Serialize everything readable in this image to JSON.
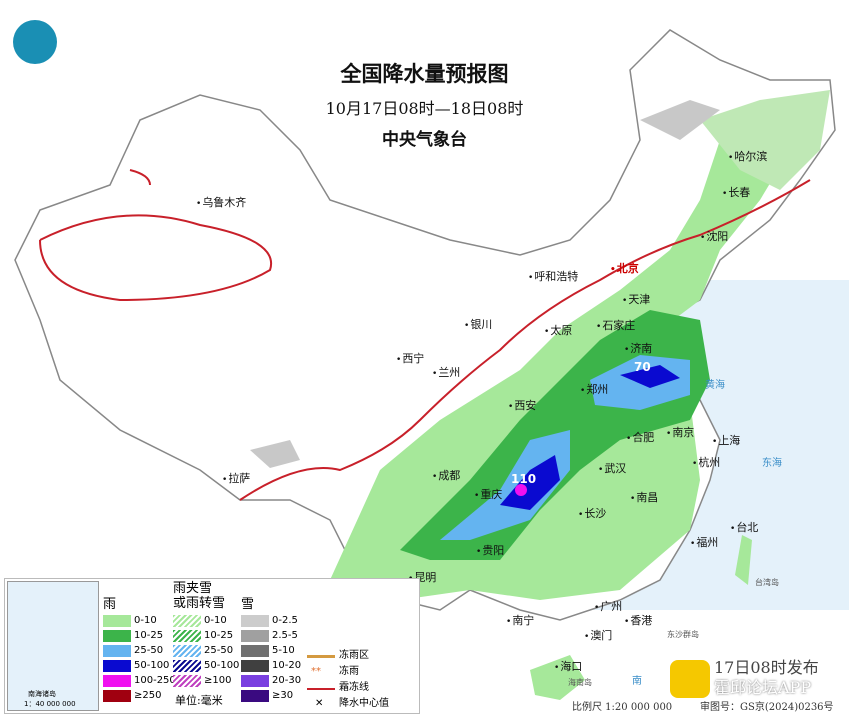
{
  "header": {
    "title": "全国降水量预报图",
    "period": "10月17日08时—18日08时",
    "issuer": "中央气象台"
  },
  "cities": {
    "harbin": "哈尔滨",
    "changchun": "长春",
    "shenyang": "沈阳",
    "urumqi": "乌鲁木齐",
    "hohhot": "呼和浩特",
    "beijing": "北京",
    "tianjin": "天津",
    "shijiazhuang": "石家庄",
    "taiyuan": "太原",
    "yinchuan": "银川",
    "xining": "西宁",
    "lanzhou": "兰州",
    "jinan": "济南",
    "zhengzhou": "郑州",
    "xian": "西安",
    "hefei": "合肥",
    "nanjing": "南京",
    "shanghai": "上海",
    "wuhan": "武汉",
    "hangzhou": "杭州",
    "chengdu": "成都",
    "chongqing": "重庆",
    "lhasa": "拉萨",
    "changsha": "长沙",
    "nanchang": "南昌",
    "guiyang": "贵阳",
    "fuzhou": "福州",
    "taipei": "台北",
    "kunming": "昆明",
    "nanning": "南宁",
    "guangzhou": "广州",
    "hongkong": "香港",
    "macau": "澳门",
    "haikou": "海口"
  },
  "seas": {
    "yellow_sea": "黄海",
    "east_sea": "东海",
    "south_sea": "南",
    "dongsha": "东沙群岛",
    "hainan": "海南岛",
    "taiwan": "台湾岛"
  },
  "centers": {
    "chongqing_max": "110",
    "shandong_max": "70"
  },
  "legend": {
    "rain_title": "雨",
    "mix_title": "雨夹雪\n或雨转雪",
    "snow_title": "雪",
    "rain": [
      {
        "label": "0-10",
        "color": "#a6e89a"
      },
      {
        "label": "10-25",
        "color": "#3cb44a"
      },
      {
        "label": "25-50",
        "color": "#64b4f0"
      },
      {
        "label": "50-100",
        "color": "#0a0ad0"
      },
      {
        "label": "100-250",
        "color": "#f010f0"
      },
      {
        "label": "≥250",
        "color": "#a00010"
      }
    ],
    "mix": [
      {
        "label": "0-10",
        "color": "#a6e89a"
      },
      {
        "label": "10-25",
        "color": "#3cb44a"
      },
      {
        "label": "25-50",
        "color": "#64b4f0"
      },
      {
        "label": "50-100",
        "color": "#0a0a90"
      },
      {
        "label": "≥100",
        "color": "#c040c0"
      }
    ],
    "snow": [
      {
        "label": "0-2.5",
        "color": "#cccccc"
      },
      {
        "label": "2.5-5",
        "color": "#a0a0a0"
      },
      {
        "label": "5-10",
        "color": "#707070"
      },
      {
        "label": "10-20",
        "color": "#404040"
      },
      {
        "label": "20-30",
        "color": "#7a40e0"
      },
      {
        "label": "≥30",
        "color": "#3a0a80"
      }
    ],
    "unit": "单位:毫米",
    "freezing_zone": "冻雨区",
    "freezing_rain": "冻雨",
    "frost_line": "霜冻线",
    "center_value": "降水中心值",
    "inset_title": "南海诸岛",
    "inset_scale": "1：40 000 000"
  },
  "footer": {
    "issued": "17日08时发布",
    "scale": "比例尺 1:20 000 000",
    "map_no": "审图号：GS京(2024)0236号",
    "watermark": "霍邱论坛APP"
  }
}
